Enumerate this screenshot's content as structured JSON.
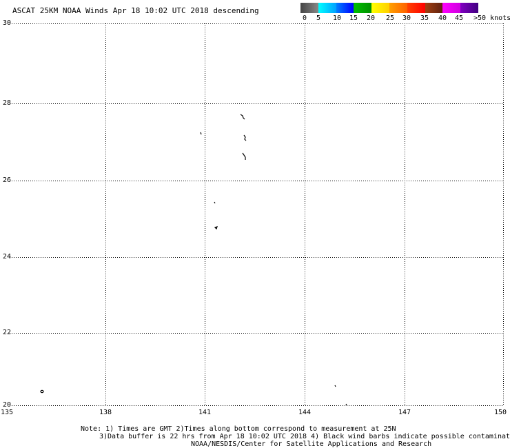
{
  "title": "ASCAT 25KM NOAA Winds  Apr 18 10:02 UTC 2018 descending",
  "colorbar": {
    "colors": [
      "#000000",
      "#00e0ff",
      "#0060ff",
      "#00b000",
      "#ffe000",
      "#ff8000",
      "#ff2020",
      "#7a3010",
      "#ff00ff",
      "#6000a0"
    ],
    "labels": [
      "0",
      "5",
      "10",
      "15",
      "20",
      "25",
      "30",
      "35",
      "40",
      "45",
      ">50 knots"
    ]
  },
  "axes": {
    "lat_labels": [
      "30",
      "28",
      "26",
      "24",
      "22",
      "20"
    ],
    "lon_labels": [
      "135",
      "138",
      "141",
      "144",
      "147",
      "150"
    ]
  },
  "notes": [
    "Note: 1) Times are GMT 2)Times along bottom correspond to measurement at 25N",
    "3)Data buffer is 22 hrs from Apr 18 10:02 UTC 2018 4) Black wind barbs indicate possible contamination",
    "NOAA/NESDIS/Center for Satellite Applications and Research"
  ]
}
